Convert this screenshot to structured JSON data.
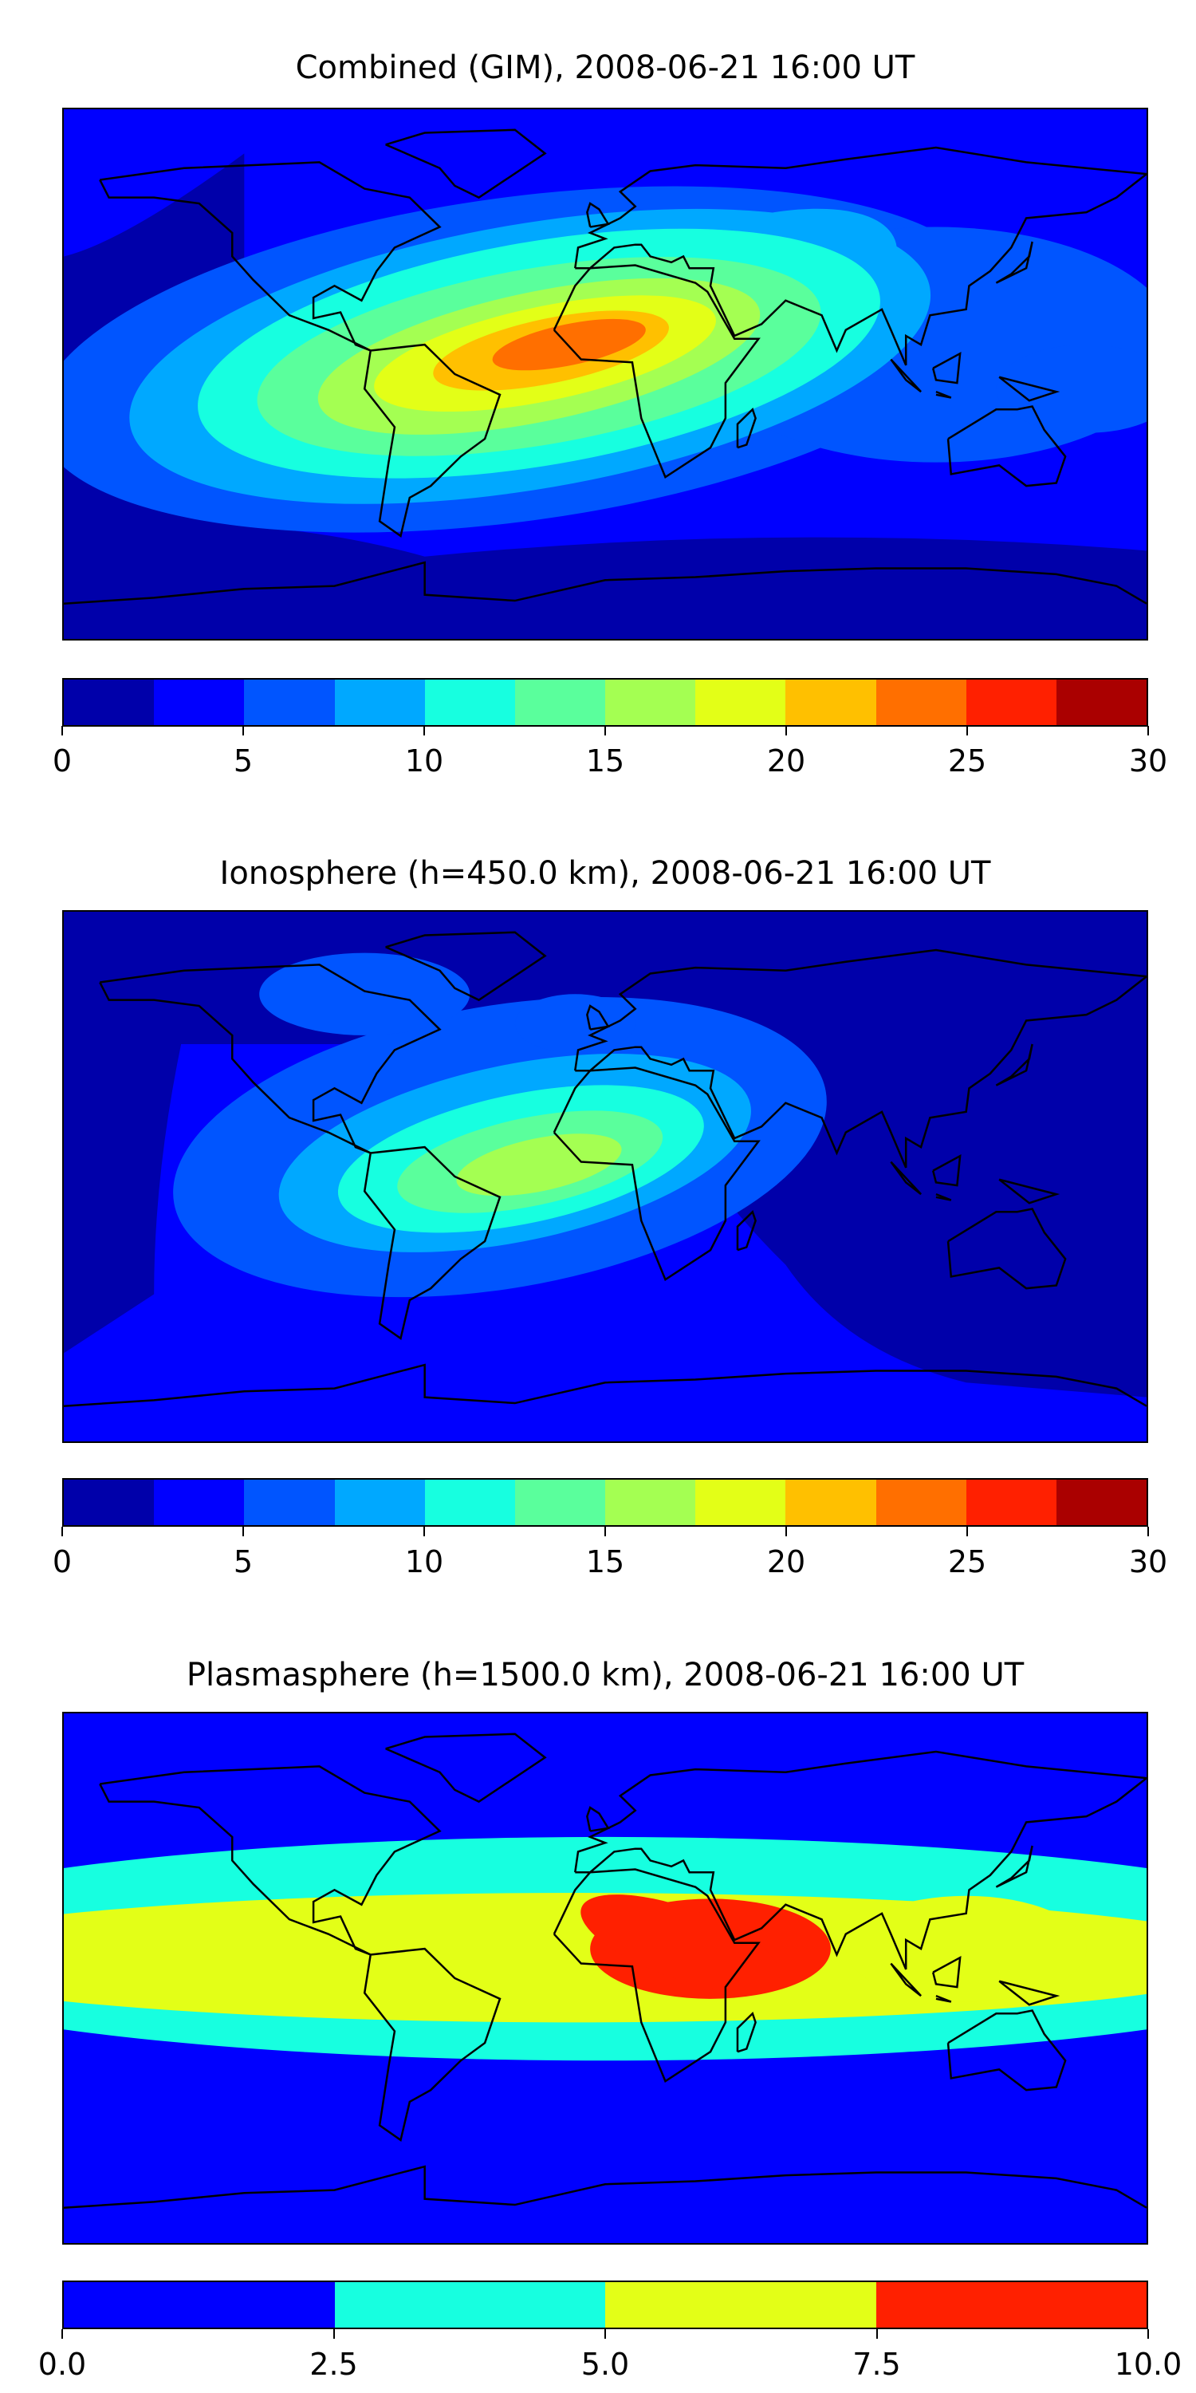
{
  "chart_data": [
    {
      "type": "heatmap",
      "title": "Combined (GIM), 2008-06-21 16:00 UT",
      "colorbar": {
        "levels": [
          0,
          2.5,
          5,
          7.5,
          10,
          12.5,
          15,
          17.5,
          20,
          22.5,
          25,
          27.5,
          30
        ],
        "tick_labels": [
          "0",
          "5",
          "10",
          "15",
          "20",
          "25",
          "30"
        ],
        "tick_values": [
          0,
          5,
          10,
          15,
          20,
          25,
          30
        ],
        "range": [
          0,
          30
        ]
      },
      "colors": [
        "#0000aa",
        "#0000ff",
        "#0055ff",
        "#00a8ff",
        "#17ffe0",
        "#5aff9c",
        "#a4ff52",
        "#e3ff17",
        "#ffc000",
        "#ff6f00",
        "#ff2000",
        "#aa0000"
      ],
      "peak_level_index": 9,
      "peak_location_lonlat": [
        -20,
        8
      ]
    },
    {
      "type": "heatmap",
      "title": "Ionosphere  (h=450.0 km), 2008-06-21 16:00 UT",
      "colorbar": {
        "levels": [
          0,
          2.5,
          5,
          7.5,
          10,
          12.5,
          15,
          17.5,
          20,
          22.5,
          25,
          27.5,
          30
        ],
        "tick_labels": [
          "0",
          "5",
          "10",
          "15",
          "20",
          "25",
          "30"
        ],
        "tick_values": [
          0,
          5,
          10,
          15,
          20,
          25,
          30
        ],
        "range": [
          0,
          30
        ]
      },
      "colors": [
        "#0000aa",
        "#0000ff",
        "#0055ff",
        "#00a8ff",
        "#17ffe0",
        "#5aff9c",
        "#a4ff52",
        "#e3ff17",
        "#ffc000",
        "#ff6f00",
        "#ff2000",
        "#aa0000"
      ],
      "peak_level_index": 6,
      "peak_location_lonlat": [
        -25,
        2
      ]
    },
    {
      "type": "heatmap",
      "title": "Plasmasphere (h=1500.0 km), 2008-06-21 16:00 UT",
      "colorbar": {
        "levels": [
          0,
          2.5,
          5,
          7.5,
          10
        ],
        "tick_labels": [
          "0.0",
          "2.5",
          "5.0",
          "7.5",
          "10.0"
        ],
        "tick_values": [
          0,
          2.5,
          5,
          7.5,
          10
        ],
        "range": [
          0,
          10
        ]
      },
      "colors": [
        "#0000ff",
        "#17ffe0",
        "#e3ff17",
        "#ff2000"
      ],
      "peak_level_index": 3,
      "peak_location_lonlat": [
        35,
        10
      ]
    }
  ]
}
